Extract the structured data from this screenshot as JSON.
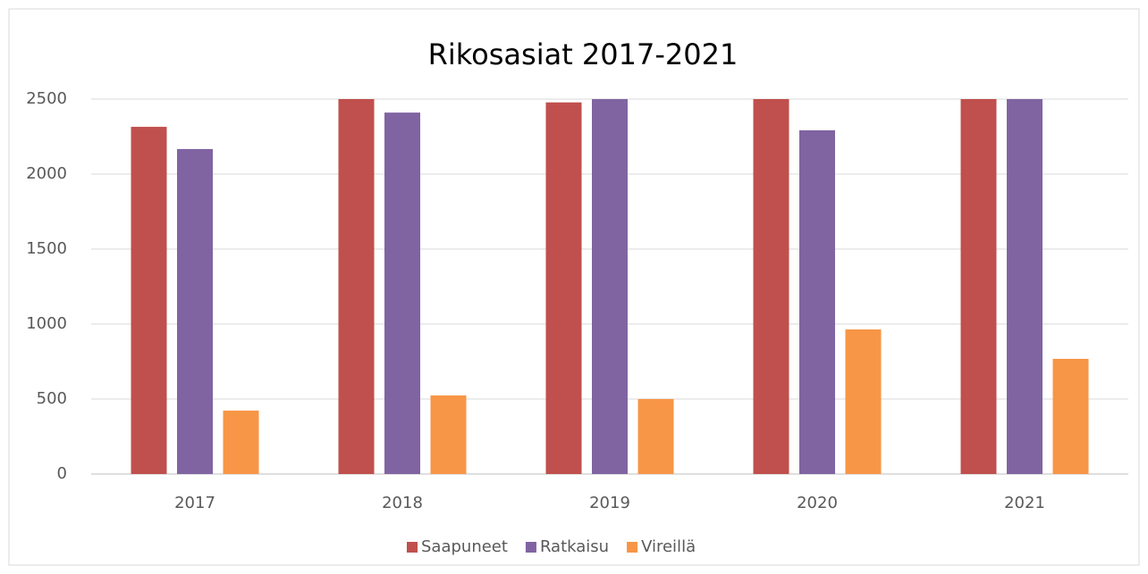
{
  "chart_data": {
    "type": "bar",
    "title": "Rikosasiat 2017-2021",
    "categories": [
      "2017",
      "2018",
      "2019",
      "2020",
      "2021"
    ],
    "series": [
      {
        "name": "Saapuneet",
        "color": "#c0504d",
        "values": [
          2315,
          2500,
          2478,
          2500,
          2500
        ]
      },
      {
        "name": "Ratkaisu",
        "color": "#8064a2",
        "values": [
          2167,
          2410,
          2500,
          2292,
          2500
        ]
      },
      {
        "name": "Vireillä",
        "color": "#f79646",
        "values": [
          423,
          524,
          500,
          964,
          768
        ]
      }
    ],
    "ylim": [
      0,
      2500
    ],
    "yticks": [
      0,
      500,
      1000,
      1500,
      2000,
      2500
    ],
    "grid": true,
    "legend": "bottom"
  }
}
